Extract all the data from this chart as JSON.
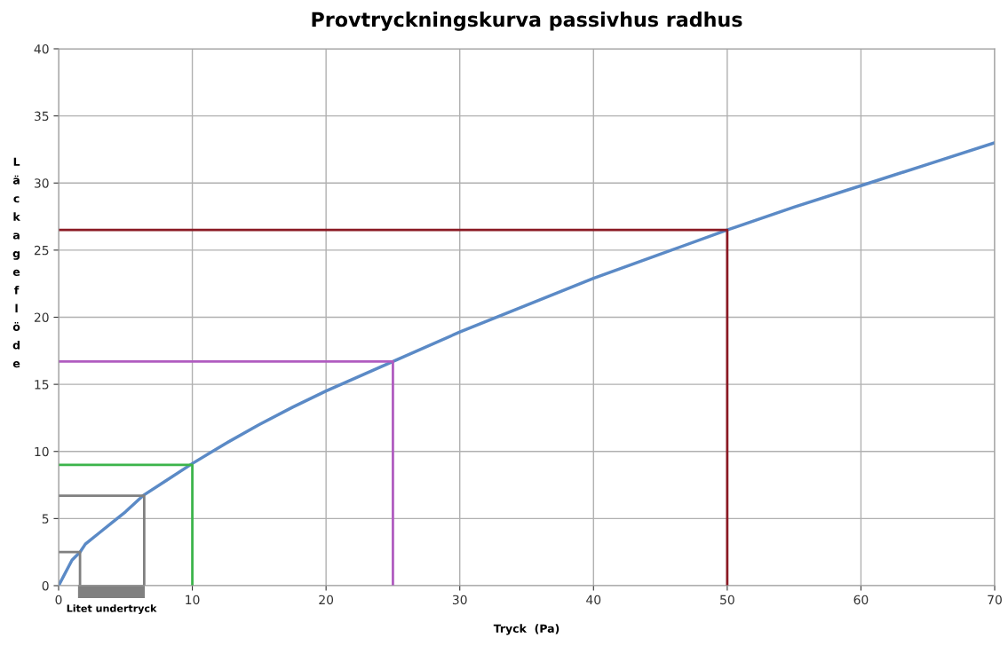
{
  "chart_data": {
    "type": "line",
    "title": "Provtryckningskurva passivhus radhus",
    "xlabel": "Tryck  (Pa)",
    "ylabel": "Läckageflöde",
    "series": [
      {
        "color": "#5b8ac6",
        "x": [
          0,
          1,
          1.6,
          2,
          3,
          4,
          5,
          6.3,
          8,
          10,
          12.5,
          15,
          17.5,
          20,
          25,
          30,
          35,
          40,
          45,
          50,
          55,
          60,
          65,
          70
        ],
        "values": [
          0,
          1.9,
          2.5,
          3.1,
          3.9,
          4.7,
          5.5,
          6.7,
          7.8,
          9.1,
          10.6,
          12.0,
          13.3,
          14.5,
          16.7,
          18.9,
          20.9,
          22.9,
          24.7,
          26.5,
          28.2,
          29.8,
          31.4,
          33.0
        ]
      },
      {
        "color": "#8b1a24",
        "x": [
          0,
          50,
          50
        ],
        "values": [
          26.5,
          26.5,
          0
        ]
      },
      {
        "color": "#b05cc0",
        "x": [
          0,
          25,
          25
        ],
        "values": [
          16.7,
          16.7,
          0
        ]
      },
      {
        "color": "#3cb44b",
        "x": [
          0,
          10,
          10
        ],
        "values": [
          9.0,
          9.0,
          0
        ]
      },
      {
        "color": "#808080",
        "x": [
          0,
          1.6,
          1.6
        ],
        "values": [
          2.5,
          2.5,
          0
        ]
      },
      {
        "color": "#808080",
        "x": [
          0,
          6.4,
          6.4
        ],
        "values": [
          6.7,
          6.7,
          0
        ]
      }
    ],
    "annotations": [
      "Litet undertryck"
    ],
    "xlim": [
      0,
      70
    ],
    "xticks": [
      0,
      10,
      20,
      30,
      40,
      50,
      60,
      70
    ],
    "ylim": [
      0,
      40
    ],
    "yticks": [
      0,
      5,
      10,
      15,
      20,
      25,
      30,
      35,
      40
    ],
    "grid": true,
    "marker": "none",
    "line_style": "solid"
  }
}
